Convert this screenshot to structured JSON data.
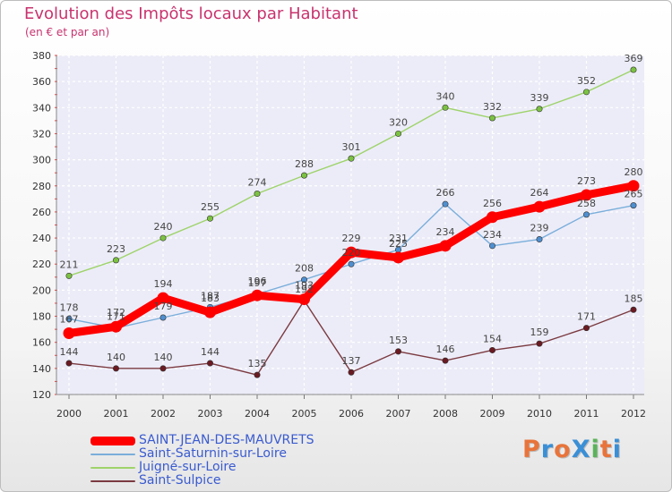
{
  "title": "Evolution des Impôts locaux par Habitant",
  "subtitle": "(en € et par an)",
  "brand": {
    "text": "ProXiti",
    "colors": [
      "#e8743b",
      "#3a8fd6",
      "#e8743b",
      "#3a8fd6",
      "#5bb35b",
      "#e8743b",
      "#3a8fd6"
    ]
  },
  "chart_data": {
    "type": "line",
    "x": [
      "2000",
      "2001",
      "2002",
      "2003",
      "2004",
      "2005",
      "2006",
      "2007",
      "2008",
      "2009",
      "2010",
      "2011",
      "2012"
    ],
    "ylim": [
      120,
      380
    ],
    "yticks": [
      120,
      140,
      160,
      180,
      200,
      220,
      240,
      260,
      280,
      300,
      320,
      340,
      360,
      380
    ],
    "grid": true,
    "legend_position": "bottom-left",
    "series": [
      {
        "name": "SAINT-JEAN-DES-MAUVRETS",
        "values": [
          167,
          172,
          194,
          183,
          196,
          193,
          229,
          225,
          234,
          256,
          264,
          273,
          280
        ],
        "color": "#ff0000",
        "line_color": "#ff0000",
        "emphasis": true
      },
      {
        "name": "Saint-Saturnin-sur-Loire",
        "values": [
          178,
          171,
          179,
          187,
          197,
          208,
          220,
          231,
          266,
          234,
          239,
          258,
          265
        ],
        "color": "#4f8fd0",
        "line_color": "#7aaedb",
        "emphasis": false
      },
      {
        "name": "Juigné-sur-Loire",
        "values": [
          211,
          223,
          240,
          255,
          274,
          288,
          301,
          320,
          340,
          332,
          339,
          352,
          369
        ],
        "color": "#7cc242",
        "line_color": "#9ed36a",
        "emphasis": false
      },
      {
        "name": "Saint-Sulpice",
        "values": [
          144,
          140,
          140,
          144,
          135,
          192,
          137,
          153,
          146,
          154,
          159,
          171,
          185
        ],
        "color": "#6b1a22",
        "line_color": "#7b3a40",
        "emphasis": false
      }
    ]
  }
}
